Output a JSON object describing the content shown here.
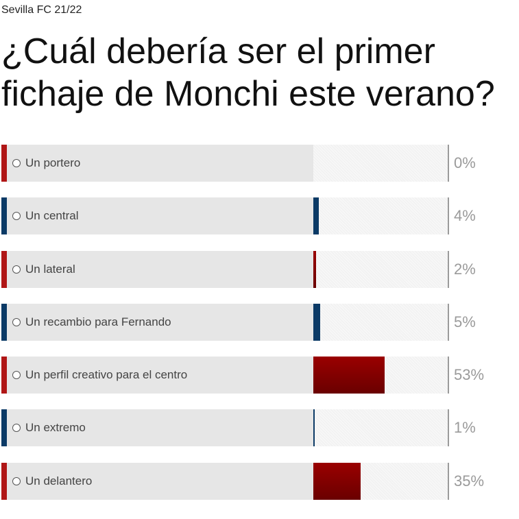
{
  "header": {
    "kicker": "Sevilla FC 21/22",
    "title": "¿Cuál debería ser el primer fichaje de Monchi este verano?"
  },
  "colors": {
    "red": "#b01616",
    "navy": "#0b3a66",
    "bar_red": "#9a0000"
  },
  "options": [
    {
      "label": "Un portero",
      "percent_text": "0%",
      "percent": 0,
      "color": "red"
    },
    {
      "label": "Un central",
      "percent_text": "4%",
      "percent": 4,
      "color": "navy"
    },
    {
      "label": "Un lateral",
      "percent_text": "2%",
      "percent": 2,
      "color": "red"
    },
    {
      "label": "Un recambio para Fernando",
      "percent_text": "5%",
      "percent": 5,
      "color": "navy"
    },
    {
      "label": "Un perfil creativo para el centro",
      "percent_text": "53%",
      "percent": 53,
      "color": "red"
    },
    {
      "label": "Un extremo",
      "percent_text": "1%",
      "percent": 1,
      "color": "navy"
    },
    {
      "label": "Un delantero",
      "percent_text": "35%",
      "percent": 35,
      "color": "red"
    }
  ]
}
